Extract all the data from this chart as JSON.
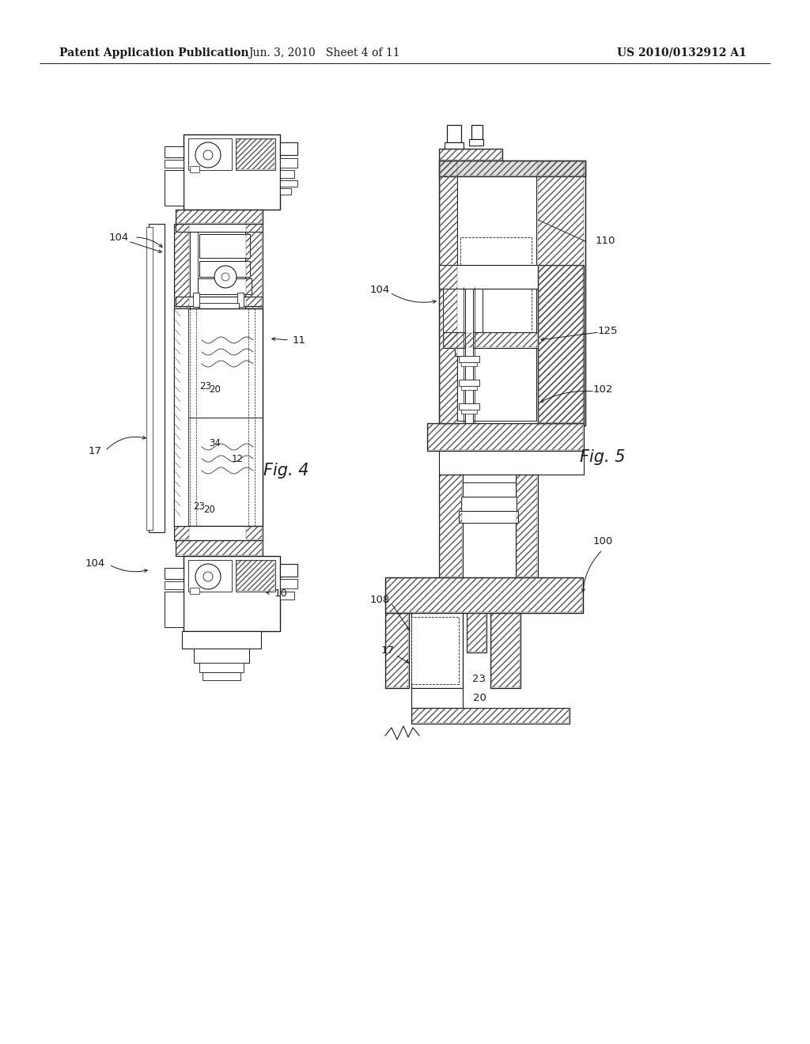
{
  "background_color": "#ffffff",
  "header_left": "Patent Application Publication",
  "header_center": "Jun. 3, 2010   Sheet 4 of 11",
  "header_right": "US 2010/0132912 A1",
  "fig4_label": "Fig. 4",
  "fig5_label": "Fig. 5",
  "header_fontsize": 10,
  "fig_label_fontsize": 14,
  "ref_fontsize": 9.5,
  "line_color": "#1a1a1a"
}
